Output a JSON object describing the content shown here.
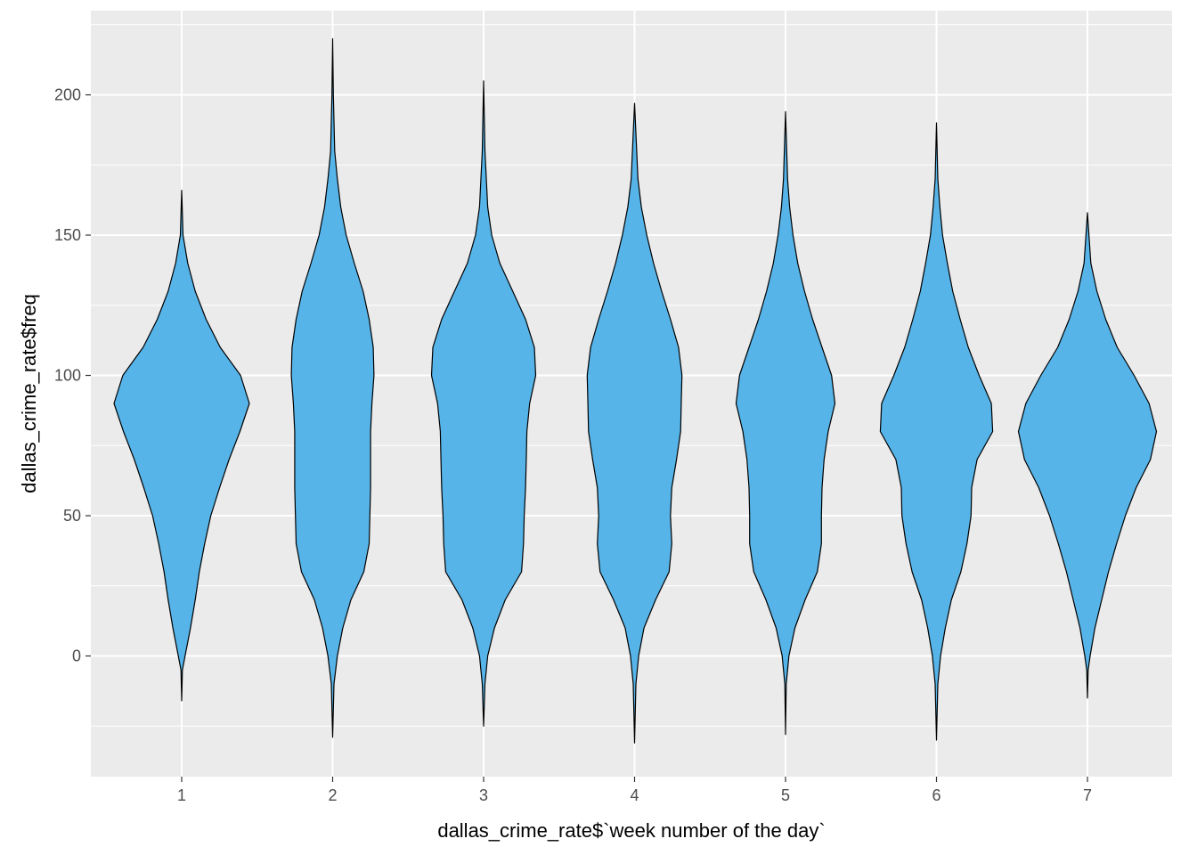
{
  "chart_data": {
    "type": "violin",
    "xlabel": "dallas_crime_rate$`week number of the day`",
    "ylabel": "dallas_crime_rate$freq",
    "categories": [
      "1",
      "2",
      "3",
      "4",
      "5",
      "6",
      "7"
    ],
    "ylim": [
      -43,
      230
    ],
    "y_ticks": [
      0,
      50,
      100,
      150,
      200
    ],
    "y_tick_labels": [
      "0",
      "50",
      "100",
      "150",
      "200"
    ],
    "grid": true,
    "colors": {
      "fill": "#56B4E9",
      "outline": "#000000",
      "panel": "#EBEBEB",
      "grid": "#FFFFFF"
    },
    "violins": [
      {
        "category": "1",
        "min": -16,
        "max": 166,
        "profile": [
          [
            -16,
            0.0
          ],
          [
            -5,
            0.01
          ],
          [
            0,
            0.05
          ],
          [
            10,
            0.13
          ],
          [
            20,
            0.2
          ],
          [
            30,
            0.26
          ],
          [
            40,
            0.34
          ],
          [
            50,
            0.43
          ],
          [
            60,
            0.56
          ],
          [
            70,
            0.7
          ],
          [
            80,
            0.86
          ],
          [
            90,
            1.0
          ],
          [
            100,
            0.87
          ],
          [
            110,
            0.57
          ],
          [
            120,
            0.36
          ],
          [
            130,
            0.2
          ],
          [
            140,
            0.09
          ],
          [
            150,
            0.02
          ],
          [
            166,
            0.0
          ]
        ]
      },
      {
        "category": "2",
        "min": -29,
        "max": 220,
        "profile": [
          [
            -29,
            0.0
          ],
          [
            -10,
            0.02
          ],
          [
            0,
            0.07
          ],
          [
            10,
            0.15
          ],
          [
            20,
            0.27
          ],
          [
            30,
            0.46
          ],
          [
            40,
            0.54
          ],
          [
            50,
            0.55
          ],
          [
            60,
            0.56
          ],
          [
            70,
            0.56
          ],
          [
            80,
            0.56
          ],
          [
            90,
            0.58
          ],
          [
            100,
            0.61
          ],
          [
            110,
            0.6
          ],
          [
            120,
            0.54
          ],
          [
            130,
            0.45
          ],
          [
            140,
            0.32
          ],
          [
            150,
            0.2
          ],
          [
            160,
            0.12
          ],
          [
            170,
            0.07
          ],
          [
            180,
            0.03
          ],
          [
            200,
            0.01
          ],
          [
            220,
            0.0
          ]
        ]
      },
      {
        "category": "3",
        "min": -25,
        "max": 205,
        "profile": [
          [
            -25,
            0.0
          ],
          [
            -10,
            0.02
          ],
          [
            0,
            0.06
          ],
          [
            10,
            0.16
          ],
          [
            20,
            0.32
          ],
          [
            30,
            0.56
          ],
          [
            40,
            0.59
          ],
          [
            50,
            0.6
          ],
          [
            60,
            0.62
          ],
          [
            70,
            0.63
          ],
          [
            80,
            0.64
          ],
          [
            90,
            0.68
          ],
          [
            100,
            0.77
          ],
          [
            110,
            0.75
          ],
          [
            120,
            0.62
          ],
          [
            130,
            0.43
          ],
          [
            140,
            0.24
          ],
          [
            150,
            0.12
          ],
          [
            160,
            0.06
          ],
          [
            180,
            0.02
          ],
          [
            205,
            0.0
          ]
        ]
      },
      {
        "category": "4",
        "min": -31,
        "max": 197,
        "profile": [
          [
            -31,
            0.0
          ],
          [
            -10,
            0.02
          ],
          [
            0,
            0.06
          ],
          [
            10,
            0.14
          ],
          [
            20,
            0.31
          ],
          [
            30,
            0.51
          ],
          [
            40,
            0.55
          ],
          [
            50,
            0.53
          ],
          [
            60,
            0.55
          ],
          [
            70,
            0.62
          ],
          [
            80,
            0.68
          ],
          [
            90,
            0.69
          ],
          [
            100,
            0.7
          ],
          [
            110,
            0.65
          ],
          [
            120,
            0.53
          ],
          [
            130,
            0.4
          ],
          [
            140,
            0.28
          ],
          [
            150,
            0.18
          ],
          [
            160,
            0.1
          ],
          [
            170,
            0.05
          ],
          [
            197,
            0.0
          ]
        ]
      },
      {
        "category": "5",
        "min": -28,
        "max": 194,
        "profile": [
          [
            -28,
            0.0
          ],
          [
            -10,
            0.01
          ],
          [
            0,
            0.05
          ],
          [
            10,
            0.14
          ],
          [
            20,
            0.29
          ],
          [
            30,
            0.47
          ],
          [
            40,
            0.53
          ],
          [
            50,
            0.53
          ],
          [
            60,
            0.54
          ],
          [
            70,
            0.57
          ],
          [
            80,
            0.63
          ],
          [
            90,
            0.73
          ],
          [
            100,
            0.68
          ],
          [
            110,
            0.54
          ],
          [
            120,
            0.4
          ],
          [
            130,
            0.28
          ],
          [
            140,
            0.18
          ],
          [
            150,
            0.11
          ],
          [
            160,
            0.06
          ],
          [
            170,
            0.03
          ],
          [
            194,
            0.0
          ]
        ]
      },
      {
        "category": "6",
        "min": -30,
        "max": 190,
        "profile": [
          [
            -30,
            0.0
          ],
          [
            -10,
            0.02
          ],
          [
            0,
            0.06
          ],
          [
            10,
            0.13
          ],
          [
            20,
            0.22
          ],
          [
            30,
            0.36
          ],
          [
            40,
            0.45
          ],
          [
            50,
            0.51
          ],
          [
            60,
            0.52
          ],
          [
            70,
            0.6
          ],
          [
            80,
            0.83
          ],
          [
            90,
            0.81
          ],
          [
            100,
            0.63
          ],
          [
            110,
            0.47
          ],
          [
            120,
            0.35
          ],
          [
            130,
            0.24
          ],
          [
            140,
            0.16
          ],
          [
            150,
            0.09
          ],
          [
            160,
            0.05
          ],
          [
            170,
            0.02
          ],
          [
            190,
            0.0
          ]
        ]
      },
      {
        "category": "7",
        "min": -15,
        "max": 158,
        "profile": [
          [
            -15,
            0.0
          ],
          [
            -5,
            0.01
          ],
          [
            0,
            0.04
          ],
          [
            10,
            0.11
          ],
          [
            20,
            0.21
          ],
          [
            30,
            0.31
          ],
          [
            40,
            0.43
          ],
          [
            50,
            0.56
          ],
          [
            60,
            0.72
          ],
          [
            70,
            0.93
          ],
          [
            80,
            1.02
          ],
          [
            90,
            0.91
          ],
          [
            100,
            0.69
          ],
          [
            110,
            0.44
          ],
          [
            120,
            0.27
          ],
          [
            130,
            0.14
          ],
          [
            140,
            0.05
          ],
          [
            158,
            0.0
          ]
        ]
      }
    ]
  }
}
